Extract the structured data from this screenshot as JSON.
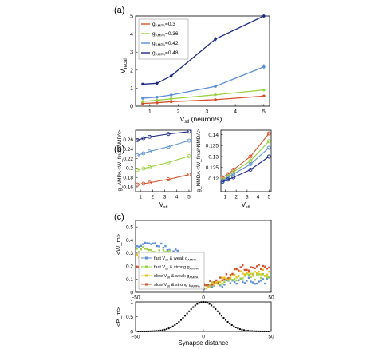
{
  "colors": {
    "red": "#d4502b",
    "green": "#9bd13f",
    "blue_light": "#5b8fd6",
    "navy": "#1c2a86",
    "yellow": "#e8c21a",
    "dark": "#000000"
  },
  "chart_data": [
    {
      "panel": "(a)",
      "type": "line",
      "ylabel": "V_recall",
      "xlabel": "V_stl (neuron/s)",
      "xlim": [
        0.5,
        5.2
      ],
      "ylim": [
        0,
        5
      ],
      "xticks": [
        "1",
        "2",
        "3",
        "4",
        "5"
      ],
      "yticks": [
        "0",
        "1",
        "2",
        "3",
        "4",
        "5"
      ],
      "legend_position": "top-left",
      "x": [
        0.75,
        1.25,
        1.75,
        3.3,
        5.0
      ],
      "series": [
        {
          "name": "g_AMPA=0.3",
          "label_main": "g",
          "label_sub": "AMPA",
          "label_tail": "=0.3",
          "color": "#d4502b",
          "values": [
            0.15,
            0.19,
            0.25,
            0.36,
            0.56
          ]
        },
        {
          "name": "g_AMPA=0.36",
          "label_main": "g",
          "label_sub": "AMPA",
          "label_tail": "=0.36",
          "color": "#9bd13f",
          "values": [
            0.26,
            0.33,
            0.41,
            0.63,
            0.9
          ]
        },
        {
          "name": "g_AMPA=0.42",
          "label_main": "g",
          "label_sub": "AMPA",
          "label_tail": "=0.42",
          "color": "#5b8fd6",
          "values": [
            0.44,
            0.5,
            0.62,
            1.1,
            2.18
          ]
        },
        {
          "name": "g_AMPA=0.48",
          "label_main": "g",
          "label_sub": "AMPA",
          "label_tail": "=0.48",
          "color": "#1c2a86",
          "values": [
            1.22,
            1.27,
            1.68,
            3.72,
            5.0
          ]
        }
      ]
    },
    {
      "panel": "(b) left",
      "type": "line",
      "ylabel": "g_AMPA <W_final^AMPA>",
      "xlabel": "V_stl",
      "xlim": [
        0.6,
        5.2
      ],
      "ylim": [
        0.15,
        0.28
      ],
      "xticks": [
        "1",
        "2",
        "3",
        "4",
        "5"
      ],
      "yticks": [
        "0.16",
        "0.18",
        "0.2",
        "0.22",
        "0.24",
        "0.26"
      ],
      "x": [
        0.75,
        1.25,
        1.75,
        3.3,
        5.0
      ],
      "series": [
        {
          "color": "#d4502b",
          "values": [
            0.165,
            0.167,
            0.169,
            0.176,
            0.186
          ]
        },
        {
          "color": "#9bd13f",
          "values": [
            0.196,
            0.199,
            0.202,
            0.212,
            0.225
          ]
        },
        {
          "color": "#5b8fd6",
          "values": [
            0.227,
            0.231,
            0.235,
            0.245,
            0.258
          ]
        },
        {
          "color": "#1c2a86",
          "values": [
            0.259,
            0.263,
            0.266,
            0.272,
            0.277
          ]
        }
      ]
    },
    {
      "panel": "(b) right",
      "type": "line",
      "ylabel": "g_NMDA <W_final^NMDA>",
      "xlabel": "V_stl",
      "xlim": [
        0.6,
        5.2
      ],
      "ylim": [
        0.114,
        0.142
      ],
      "xticks": [
        "1",
        "2",
        "3",
        "4",
        "5"
      ],
      "yticks": [
        "0.12",
        "0.125",
        "0.13",
        "0.135",
        "0.14"
      ],
      "x": [
        0.75,
        1.25,
        1.75,
        3.3,
        5.0
      ],
      "series": [
        {
          "color": "#d4502b",
          "values": [
            0.1205,
            0.122,
            0.124,
            0.13,
            0.1405
          ]
        },
        {
          "color": "#9bd13f",
          "values": [
            0.1195,
            0.121,
            0.123,
            0.128,
            0.137
          ]
        },
        {
          "color": "#5b8fd6",
          "values": [
            0.119,
            0.1205,
            0.122,
            0.1265,
            0.134
          ]
        },
        {
          "color": "#1c2a86",
          "values": [
            0.1185,
            0.1195,
            0.1205,
            0.124,
            0.13
          ]
        }
      ]
    },
    {
      "panel": "(c) top",
      "type": "scatter",
      "ylabel": "<W_m>",
      "xlabel": "",
      "xlim": [
        -50,
        50
      ],
      "ylim": [
        0,
        0.55
      ],
      "xticks": [
        "−50",
        "0",
        "50"
      ],
      "yticks": [
        "0",
        "0.1",
        "0.2",
        "0.3",
        "0.4",
        "0.5"
      ],
      "legend_position": "bottom-left",
      "series": [
        {
          "name": "fast V_stl & weak g_AMPA",
          "label_a": "fast V",
          "sub_a": "stl",
          "label_b": " & weak  g",
          "sub_b": "AMPA",
          "color": "#5b8fd6",
          "curve": {
            "left": 0.37,
            "right": 0.09,
            "mid": 0.04
          }
        },
        {
          "name": "fast V_stl & strong g_AMPA",
          "label_a": "fast V",
          "sub_a": "stl",
          "label_b": " & strong  g",
          "sub_b": "AMPA",
          "color": "#9bd13f",
          "curve": {
            "left": 0.33,
            "right": 0.12,
            "mid": 0.04
          }
        },
        {
          "name": "slow V_stl & weak g_AMPA",
          "label_a": "slow V",
          "sub_a": "stl",
          "label_b": " & weak  g",
          "sub_b": "AMPA",
          "color": "#e8c21a",
          "curve": {
            "left": 0.27,
            "right": 0.15,
            "mid": 0.04
          }
        },
        {
          "name": "slow V_stl & strong g_AMPA",
          "label_a": "slow V",
          "sub_a": "stl",
          "label_b": " & strong  g",
          "sub_b": "AMPA",
          "color": "#d4502b",
          "curve": {
            "left": 0.21,
            "right": 0.19,
            "mid": 0.04
          }
        }
      ]
    },
    {
      "panel": "(c) bottom",
      "type": "scatter",
      "ylabel": "<P_m>",
      "xlabel": "Synapse distance",
      "xlim": [
        -50,
        50
      ],
      "ylim": [
        0,
        1
      ],
      "xticks": [
        "−50",
        "0",
        "50"
      ],
      "yticks": [
        "0",
        "0.5",
        "1"
      ],
      "profile": {
        "peak": 1.0,
        "sigma": 12
      }
    }
  ],
  "text": {
    "panel_a": "(a)",
    "panel_b": "(b)",
    "panel_c": "(c)",
    "a_ylabel_main": "V",
    "a_ylabel_sub": "recall",
    "a_xlabel_main": "V",
    "a_xlabel_sub": "stl",
    "a_xlabel_tail": " (neuron/s)",
    "b_left_xlabel_main": "V",
    "b_left_xlabel_sub": "stl",
    "b_right_xlabel_main": "V",
    "b_right_xlabel_sub": "stl",
    "b_left_ylabel": "g_AMPA <W_final^AMPA>",
    "b_right_ylabel": "g_NMDA <W_final^NMDA>",
    "c_top_ylabel": "<W_m>",
    "c_bottom_ylabel": "<P_m>",
    "c_xlabel": "Synapse distance"
  }
}
